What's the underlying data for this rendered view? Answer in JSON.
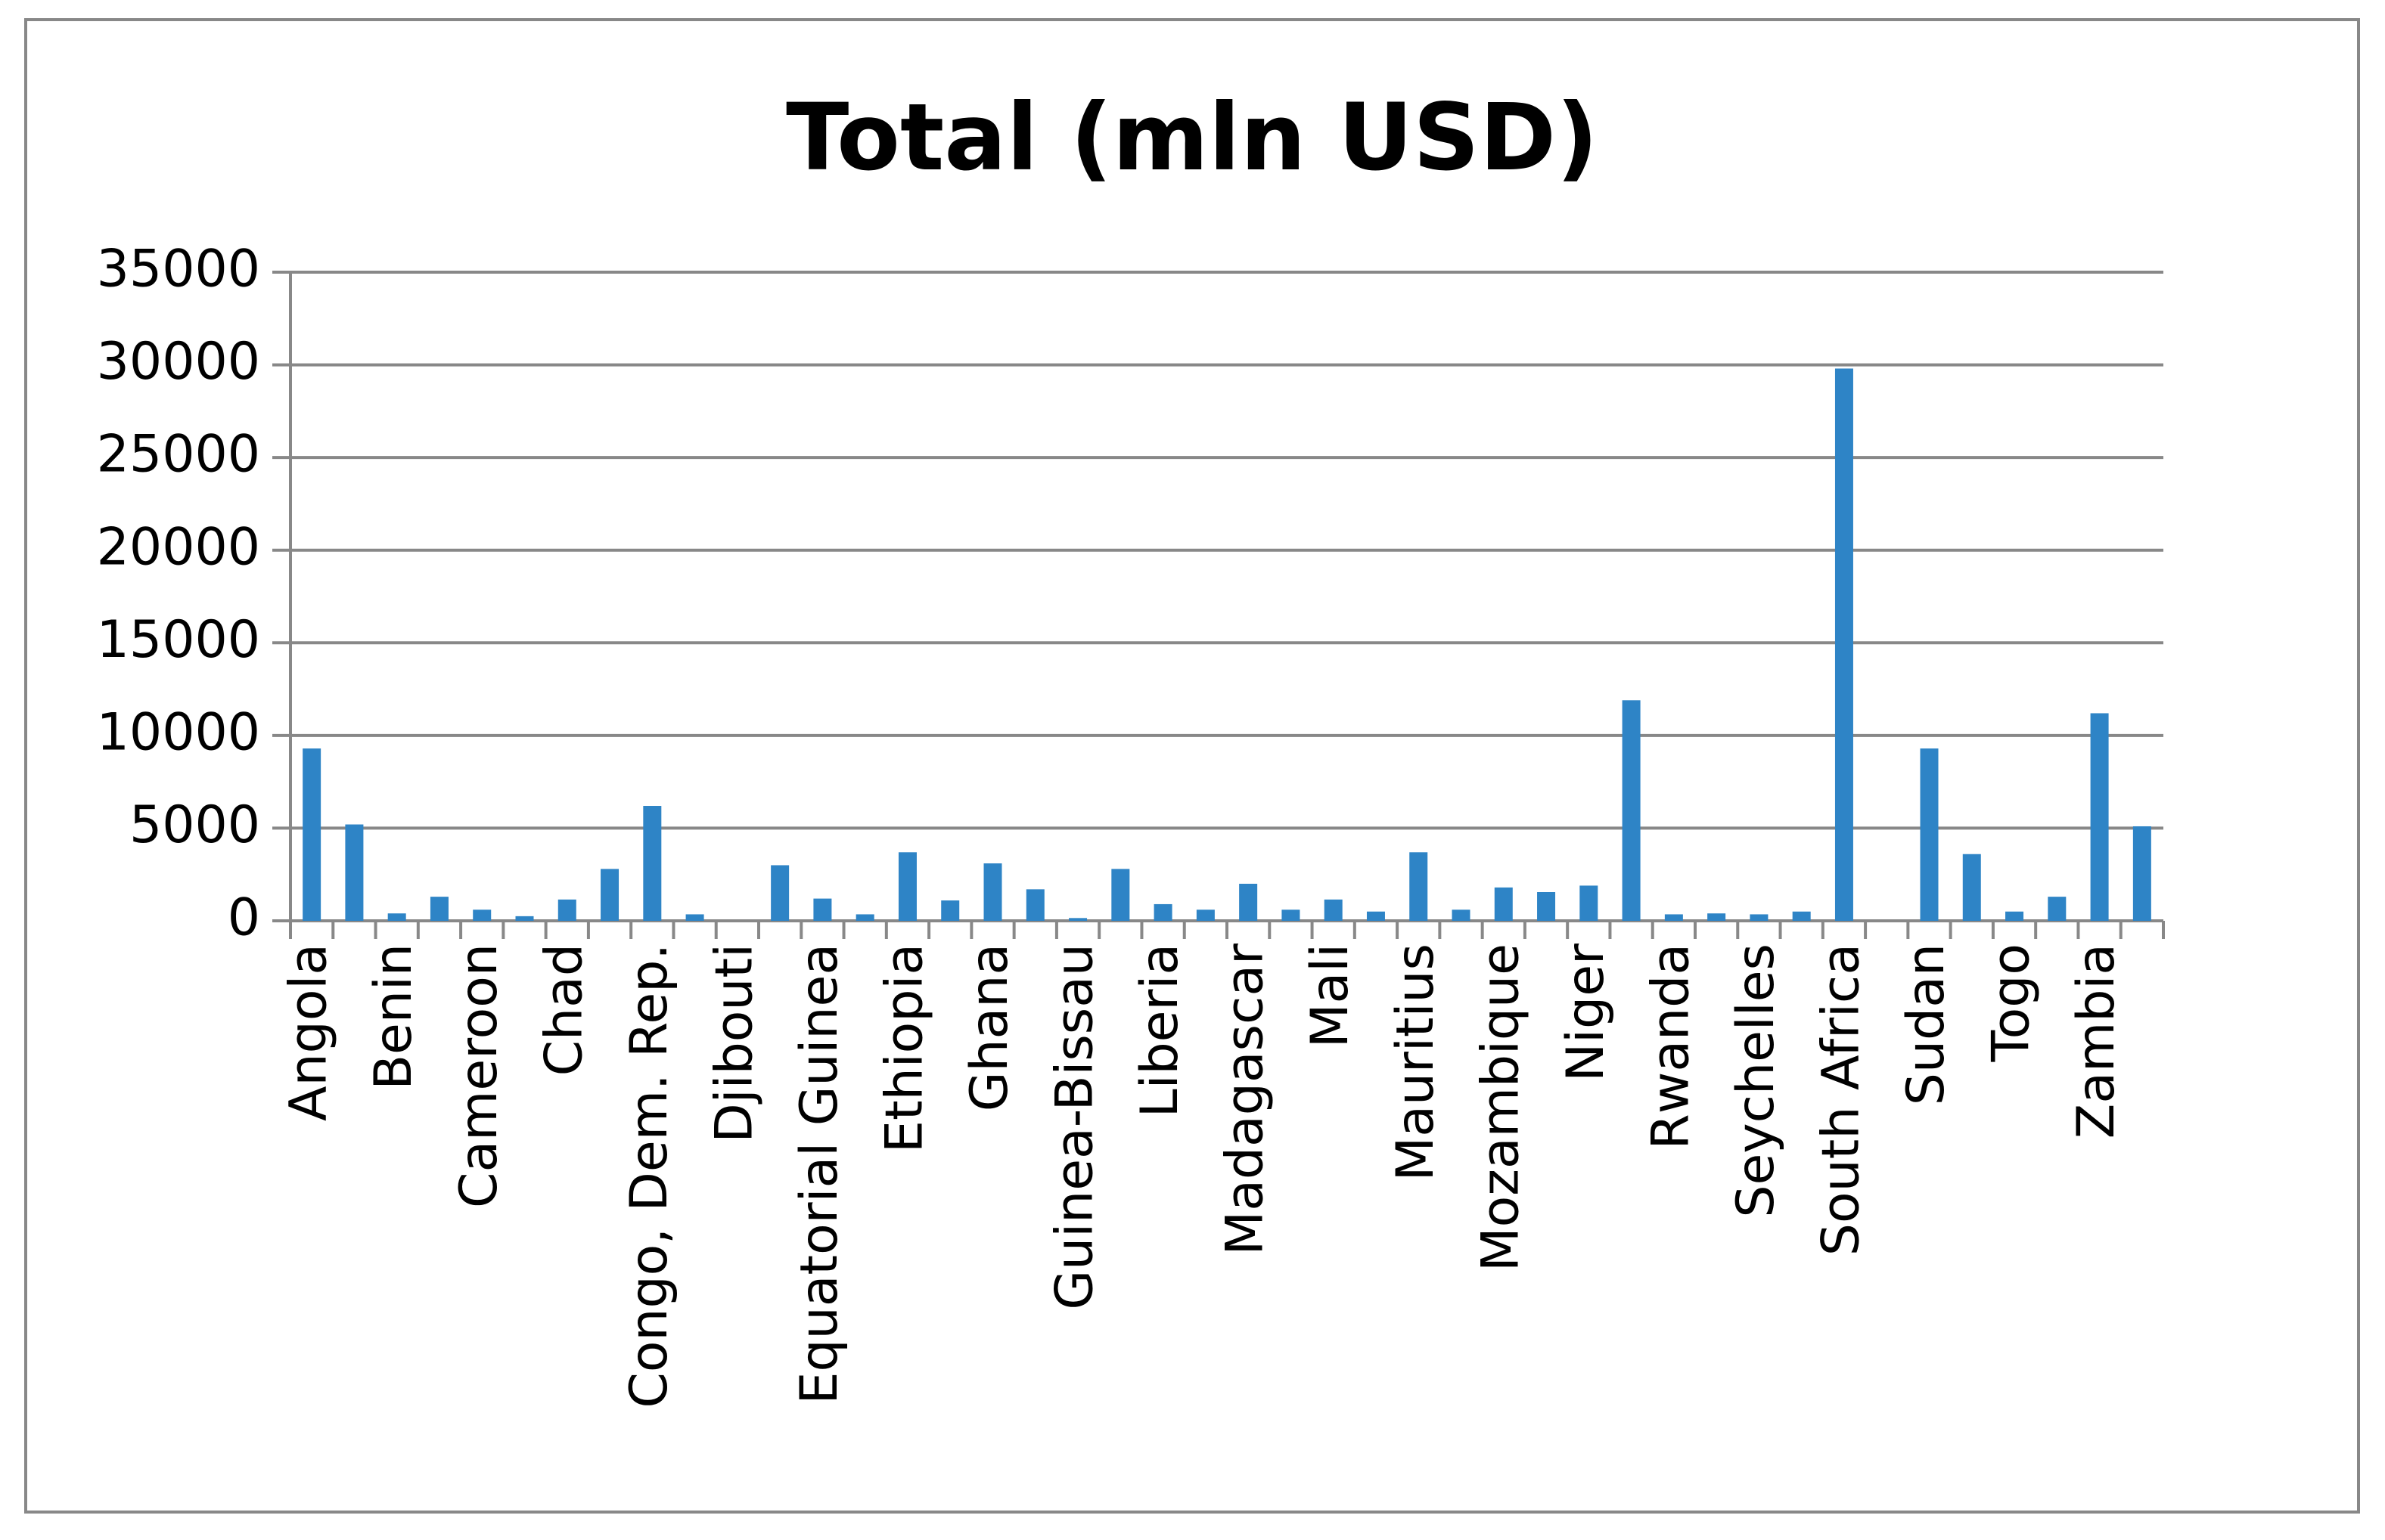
{
  "chart_data": {
    "type": "bar",
    "title": "Total (mln USD)",
    "categories": [
      "Angola",
      null,
      "Benin",
      null,
      "Cameroon",
      null,
      "Chad",
      null,
      "Congo, Dem. Rep.",
      null,
      "Djibouti",
      null,
      "Equatorial Guinea",
      null,
      "Ethiopia",
      null,
      "Ghana",
      null,
      "Guinea-Bissau",
      null,
      "Liberia",
      null,
      "Madagascar",
      null,
      "Mali",
      null,
      "Mauritius",
      null,
      "Mozambique",
      null,
      "Niger",
      null,
      "Rwanda",
      null,
      "Seychelles",
      null,
      "South Africa",
      null,
      "Sudan",
      null,
      "Togo",
      null,
      "Zambia",
      null
    ],
    "values": [
      9300,
      5200,
      400,
      1300,
      600,
      250,
      1150,
      2800,
      6200,
      350,
      0,
      3000,
      1200,
      350,
      3700,
      1100,
      3100,
      1700,
      150,
      2800,
      900,
      600,
      2000,
      600,
      1150,
      500,
      3700,
      600,
      1800,
      1550,
      1900,
      11900,
      350,
      400,
      350,
      500,
      29800,
      0,
      9300,
      3600,
      500,
      1300,
      11200,
      5100
    ],
    "color": "#2e84c6",
    "ylim": [
      0,
      35000
    ],
    "yticks": [
      0,
      5000,
      10000,
      15000,
      20000,
      25000,
      30000,
      35000
    ],
    "grid": true
  }
}
